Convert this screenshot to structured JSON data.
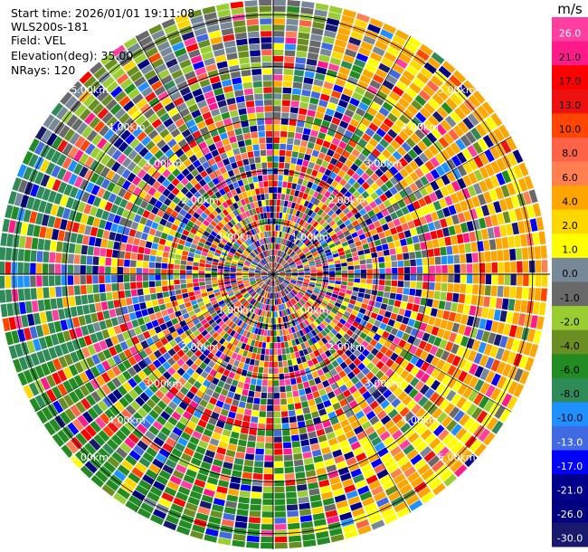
{
  "info": {
    "start_time": "Start time: 2026/01/01 19:11:08",
    "instrument": "WLS200s-181",
    "field": "Field: VEL",
    "elevation": "Elevation(deg): 35.00",
    "nrays": "NRays: 120"
  },
  "chart_data": {
    "type": "heatmap",
    "projection": "polar-ppi",
    "field": "VEL",
    "unit_label": "m/s",
    "n_rays": 120,
    "elevation_deg": 35.0,
    "range_rings_km": [
      "1.00km",
      "2.00km",
      "3.00km",
      "4.00km",
      "5.00km"
    ],
    "range_ring_values_km": [
      1,
      2,
      3,
      4,
      5
    ],
    "max_range_km": 5.3,
    "colorbar": {
      "ticks": [
        "26.0",
        "21.0",
        "17.0",
        "13.0",
        "10.0",
        "8.0",
        "6.0",
        "4.0",
        "2.0",
        "1.0",
        "0.0",
        "-1.0",
        "-2.0",
        "-4.0",
        "-6.0",
        "-8.0",
        "-10.0",
        "-13.0",
        "-17.0",
        "-21.0",
        "-26.0",
        "-30.0"
      ],
      "colors": [
        "#ff3fa0",
        "#ff1a8c",
        "#ff0000",
        "#ee1111",
        "#ff4500",
        "#ff6347",
        "#ff7f50",
        "#ffa500",
        "#ffd700",
        "#ffff00",
        "#778899",
        "#696969",
        "#9acd32",
        "#6b8e23",
        "#228b22",
        "#2e8b57",
        "#1e90ff",
        "#4169e1",
        "#0000ff",
        "#00008b",
        "#000080",
        "#191970"
      ]
    },
    "pattern": {
      "far_north_east": "#ffa500",
      "far_south_west": "#228b22",
      "far_west": "#2e8b57",
      "near_field": "speckled"
    }
  }
}
